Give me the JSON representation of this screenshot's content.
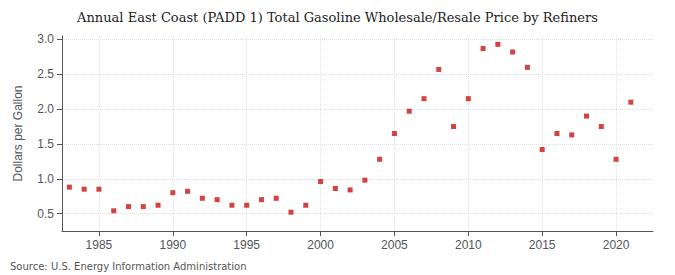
{
  "chart_data": {
    "type": "scatter",
    "title": "Annual East Coast (PADD 1) Total Gasoline Wholesale/Resale Price by Refiners",
    "ylabel": "Dollars per Gallon",
    "annotations": [
      "Source: U.S. Energy Information Administration"
    ],
    "x": [
      1983,
      1984,
      1985,
      1986,
      1987,
      1988,
      1989,
      1990,
      1991,
      1992,
      1993,
      1994,
      1995,
      1996,
      1997,
      1998,
      1999,
      2000,
      2001,
      2002,
      2003,
      2004,
      2005,
      2006,
      2007,
      2008,
      2009,
      2010,
      2011,
      2012,
      2013,
      2014,
      2015,
      2016,
      2017,
      2018,
      2019,
      2020,
      2021
    ],
    "values": [
      0.88,
      0.85,
      0.85,
      0.54,
      0.6,
      0.6,
      0.62,
      0.8,
      0.82,
      0.72,
      0.7,
      0.62,
      0.62,
      0.7,
      0.72,
      0.52,
      0.62,
      0.96,
      0.86,
      0.84,
      0.98,
      1.28,
      1.65,
      1.97,
      2.15,
      2.57,
      1.75,
      2.15,
      2.87,
      2.93,
      2.82,
      2.6,
      1.42,
      1.65,
      1.63,
      1.9,
      1.75,
      1.28,
      2.1
    ],
    "color": "#cc1111",
    "marker": "square",
    "xlim": [
      1982.5,
      2022.5
    ],
    "xticks": [
      1985,
      1990,
      1995,
      2000,
      2005,
      2010,
      2015,
      2020
    ],
    "ylim": [
      0.25,
      3.05
    ],
    "yticks": [
      0.5,
      {
        "value": 1.0,
        "label": "1.0"
      },
      1.5,
      {
        "value": 2.0,
        "label": "2.0"
      },
      2.5,
      {
        "value": 3.0,
        "label": "3.0"
      }
    ],
    "grid": true
  }
}
